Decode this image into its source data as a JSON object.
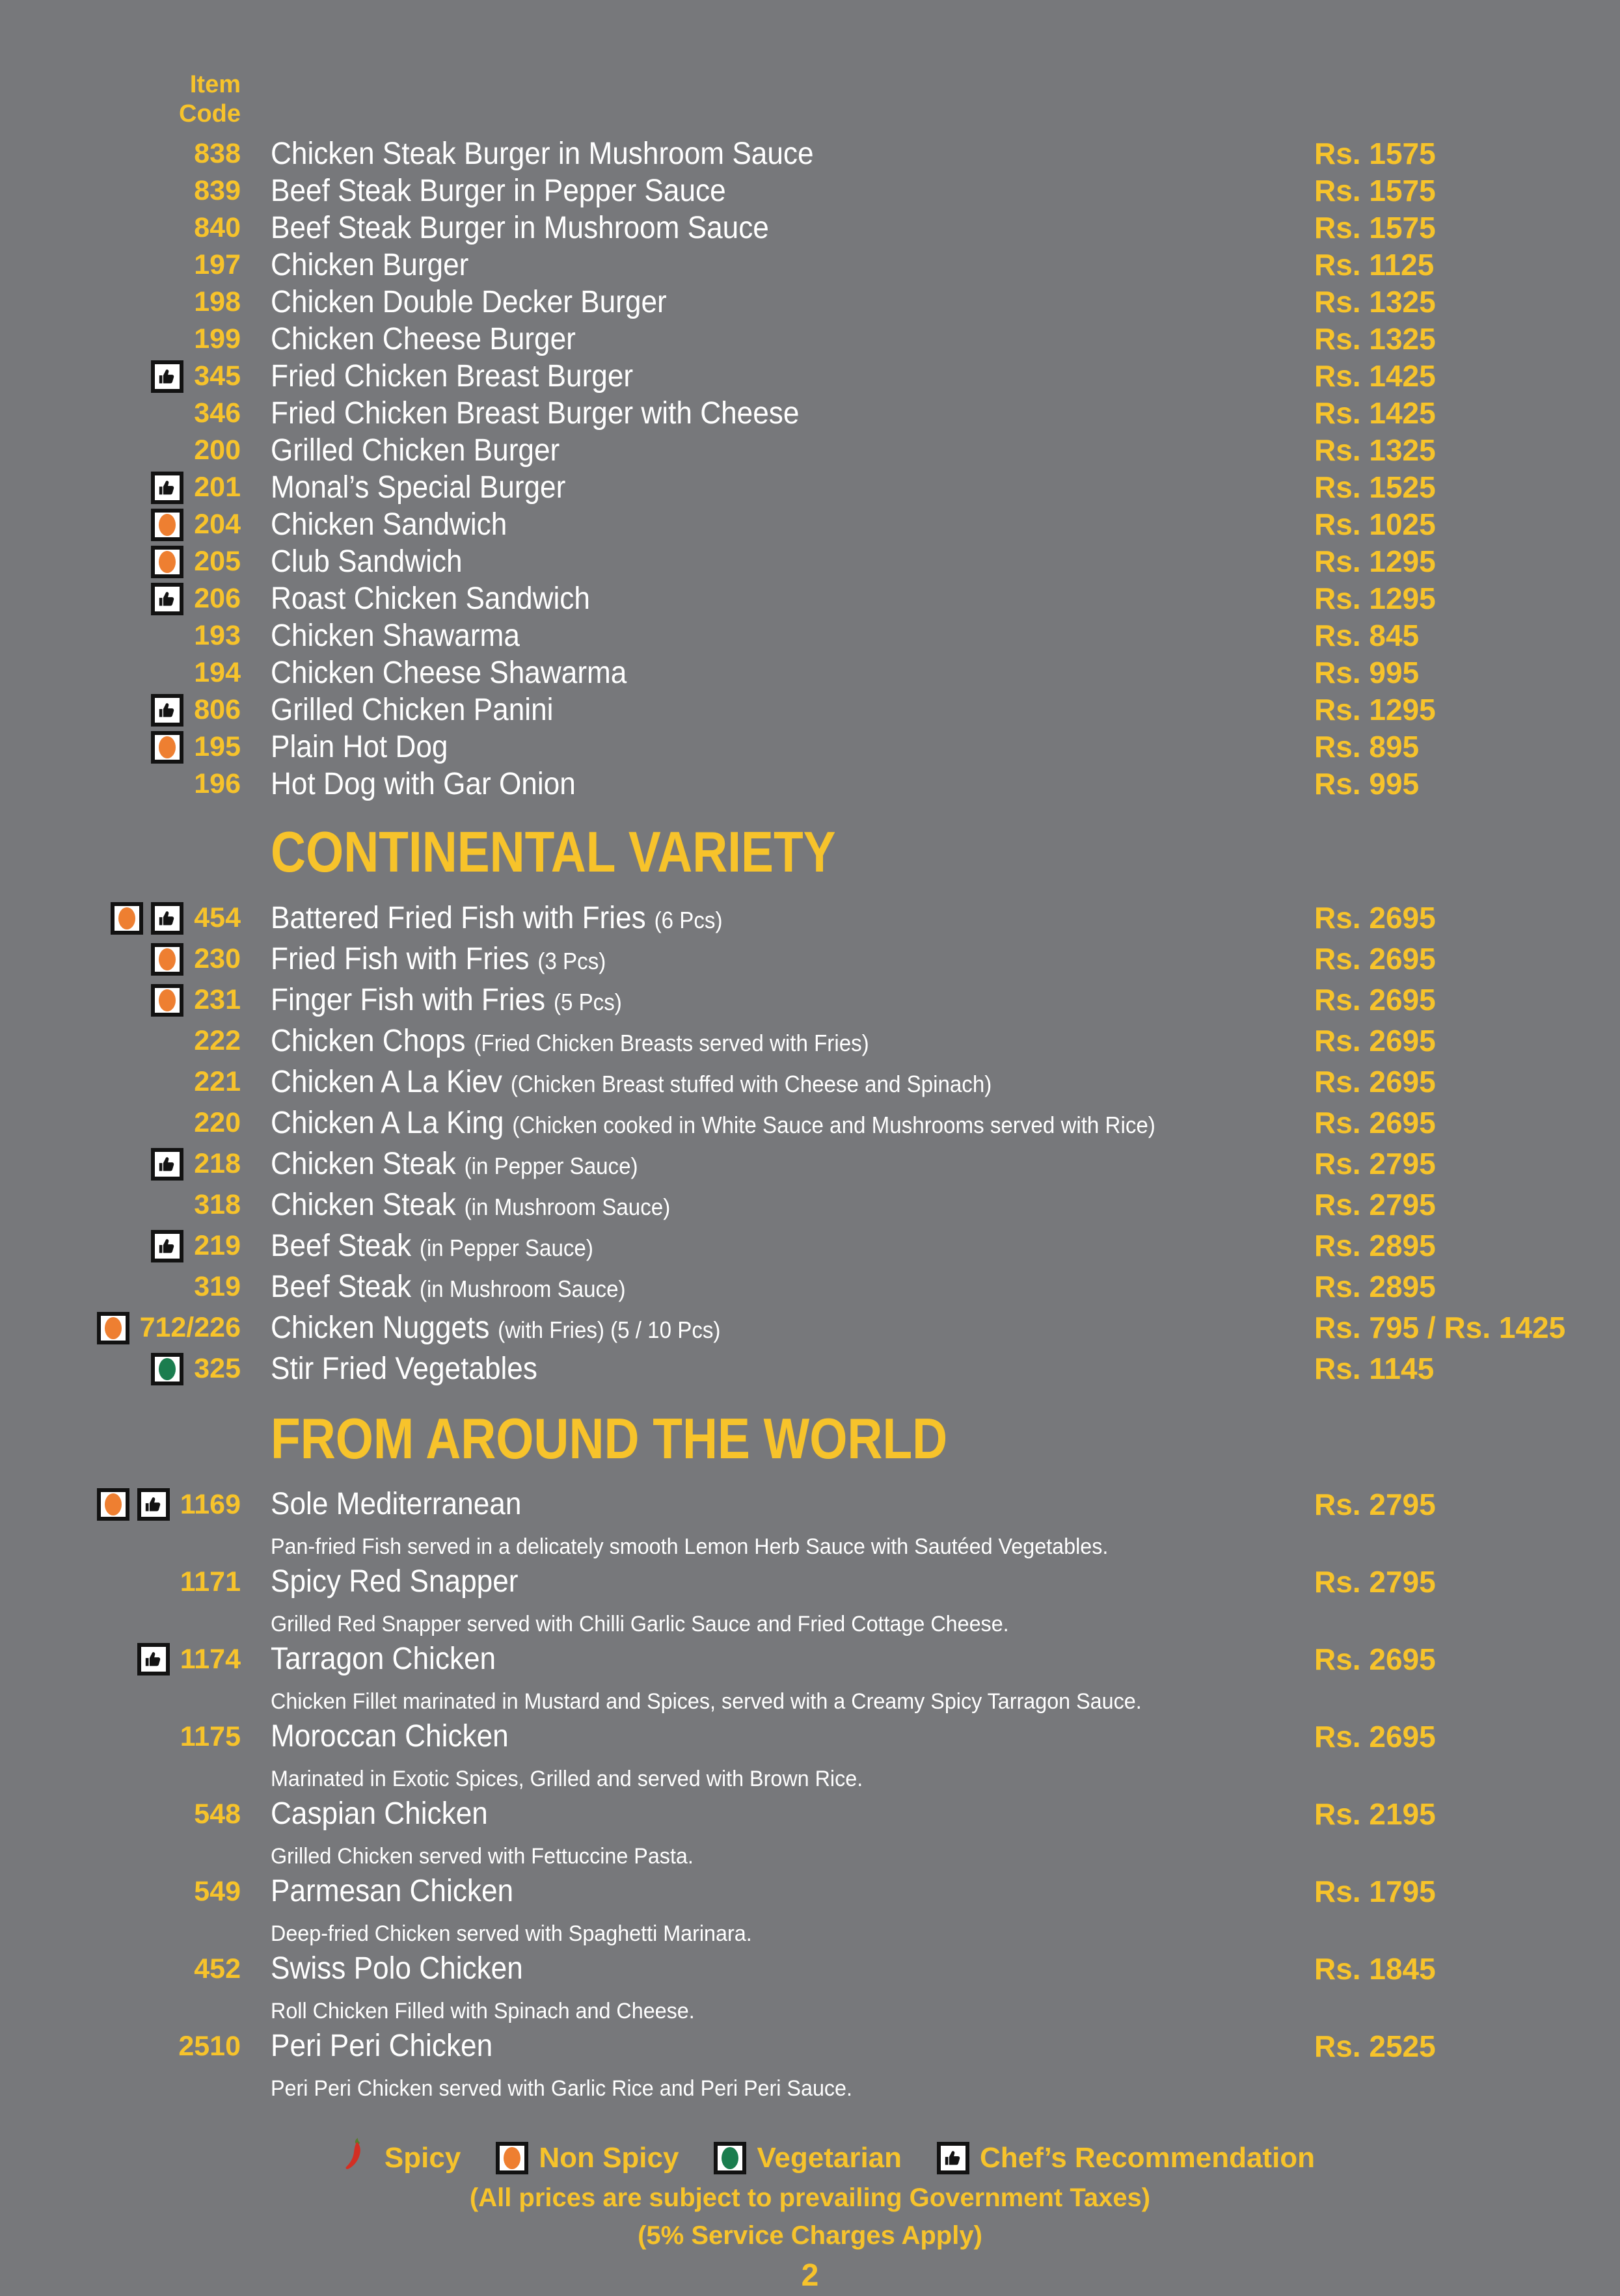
{
  "colors": {
    "background": "#77787b",
    "accent_yellow": "#f7c32b",
    "item_text": "#ffffff",
    "non_spicy_orange": "#ee7f31",
    "vegetarian_green": "#1b7d4f",
    "icon_black": "#121212",
    "spicy_red": "#d32f23"
  },
  "header": {
    "line1": "Item",
    "line2": "Code"
  },
  "menu": {
    "sections": [
      {
        "id": "burgers",
        "title": "",
        "items": [
          {
            "icons": [],
            "code": "838",
            "name": "Chicken Steak Burger in Mushroom Sauce",
            "price": "Rs. 1575"
          },
          {
            "icons": [],
            "code": "839",
            "name": "Beef Steak Burger in Pepper Sauce",
            "price": "Rs. 1575"
          },
          {
            "icons": [],
            "code": "840",
            "name": "Beef Steak Burger in Mushroom Sauce",
            "price": "Rs. 1575"
          },
          {
            "icons": [],
            "code": "197",
            "name": "Chicken Burger",
            "price": "Rs. 1125"
          },
          {
            "icons": [],
            "code": "198",
            "name": "Chicken Double Decker Burger",
            "price": "Rs. 1325"
          },
          {
            "icons": [],
            "code": "199",
            "name": "Chicken Cheese Burger",
            "price": "Rs. 1325"
          },
          {
            "icons": [
              "chef"
            ],
            "code": "345",
            "name": "Fried Chicken Breast Burger",
            "price": "Rs. 1425"
          },
          {
            "icons": [],
            "code": "346",
            "name": "Fried Chicken Breast Burger with Cheese",
            "price": "Rs. 1425"
          },
          {
            "icons": [],
            "code": "200",
            "name": "Grilled Chicken Burger",
            "price": "Rs. 1325"
          },
          {
            "icons": [
              "chef"
            ],
            "code": "201",
            "name": "Monal’s Special Burger",
            "price": "Rs. 1525"
          },
          {
            "icons": [
              "nonspicy"
            ],
            "code": "204",
            "name": "Chicken Sandwich",
            "price": "Rs. 1025"
          },
          {
            "icons": [
              "nonspicy"
            ],
            "code": "205",
            "name": "Club Sandwich",
            "price": "Rs. 1295"
          },
          {
            "icons": [
              "chef"
            ],
            "code": "206",
            "name": "Roast Chicken Sandwich",
            "price": "Rs. 1295"
          },
          {
            "icons": [],
            "code": "193",
            "name": "Chicken Shawarma",
            "price": "Rs. 845"
          },
          {
            "icons": [],
            "code": "194",
            "name": "Chicken Cheese Shawarma",
            "price": "Rs. 995"
          },
          {
            "icons": [
              "chef"
            ],
            "code": "806",
            "name": "Grilled Chicken Panini",
            "price": "Rs. 1295"
          },
          {
            "icons": [
              "nonspicy"
            ],
            "code": "195",
            "name": "Plain Hot Dog",
            "price": "Rs. 895"
          },
          {
            "icons": [],
            "code": "196",
            "name": "Hot Dog with Gar Onion",
            "price": "Rs. 995"
          }
        ]
      },
      {
        "id": "continental",
        "title": "CONTINENTAL VARIETY",
        "items": [
          {
            "icons": [
              "nonspicy",
              "chef"
            ],
            "code": "454",
            "name": "Battered Fried Fish with Fries",
            "note": "(6 Pcs)",
            "price": "Rs. 2695"
          },
          {
            "icons": [
              "nonspicy"
            ],
            "code": "230",
            "name": "Fried Fish with Fries",
            "note": "(3 Pcs)",
            "price": "Rs. 2695"
          },
          {
            "icons": [
              "nonspicy"
            ],
            "code": "231",
            "name": "Finger Fish with Fries",
            "note": "(5 Pcs)",
            "price": "Rs. 2695"
          },
          {
            "icons": [],
            "code": "222",
            "name": "Chicken Chops",
            "note": "(Fried Chicken Breasts served with Fries)",
            "price": "Rs. 2695"
          },
          {
            "icons": [],
            "code": "221",
            "name": "Chicken A La Kiev",
            "note": "(Chicken Breast stuffed with Cheese and Spinach)",
            "price": "Rs. 2695"
          },
          {
            "icons": [],
            "code": "220",
            "name": "Chicken A La King",
            "note": "(Chicken cooked in White Sauce and Mushrooms served with Rice)",
            "price": "Rs. 2695"
          },
          {
            "icons": [
              "chef"
            ],
            "code": "218",
            "name": "Chicken Steak",
            "note": "(in Pepper Sauce)",
            "price": "Rs. 2795"
          },
          {
            "icons": [],
            "code": "318",
            "name": "Chicken Steak",
            "note": "(in Mushroom Sauce)",
            "price": "Rs. 2795"
          },
          {
            "icons": [
              "chef"
            ],
            "code": "219",
            "name": "Beef Steak",
            "note": "(in Pepper Sauce)",
            "price": "Rs. 2895"
          },
          {
            "icons": [],
            "code": "319",
            "name": "Beef Steak",
            "note": "(in Mushroom Sauce)",
            "price": "Rs. 2895"
          },
          {
            "icons": [
              "nonspicy"
            ],
            "code": "712/226",
            "name": "Chicken Nuggets",
            "note": "(with Fries) (5 / 10 Pcs)",
            "price": "Rs. 795 / Rs. 1425"
          },
          {
            "icons": [
              "veg"
            ],
            "code": "325",
            "name": "Stir Fried Vegetables",
            "price": "Rs. 1145"
          }
        ]
      },
      {
        "id": "world",
        "title": "FROM AROUND THE WORLD",
        "items": [
          {
            "icons": [
              "nonspicy",
              "chef"
            ],
            "code": "1169",
            "name": "Sole Mediterranean",
            "desc": "Pan-fried Fish served in a delicately smooth Lemon Herb Sauce with Sautéed Vegetables.",
            "price": "Rs. 2795"
          },
          {
            "icons": [],
            "code": "1171",
            "name": "Spicy Red Snapper",
            "desc": "Grilled Red Snapper served with Chilli Garlic Sauce and Fried Cottage Cheese.",
            "price": "Rs. 2795"
          },
          {
            "icons": [
              "chef"
            ],
            "code": "1174",
            "name": "Tarragon Chicken",
            "desc": "Chicken Fillet marinated in Mustard and Spices, served with a Creamy Spicy Tarragon Sauce.",
            "price": "Rs. 2695"
          },
          {
            "icons": [],
            "code": "1175",
            "name": "Moroccan Chicken",
            "desc": "Marinated in Exotic Spices, Grilled and served with Brown Rice.",
            "price": "Rs. 2695"
          },
          {
            "icons": [],
            "code": "548",
            "name": "Caspian Chicken",
            "desc": "Grilled Chicken served with Fettuccine Pasta.",
            "price": "Rs. 2195"
          },
          {
            "icons": [],
            "code": "549",
            "name": "Parmesan Chicken",
            "desc": "Deep-fried Chicken served with Spaghetti Marinara.",
            "price": "Rs. 1795"
          },
          {
            "icons": [],
            "code": "452",
            "name": "Swiss Polo Chicken",
            "desc": "Roll Chicken Filled with Spinach and Cheese.",
            "price": "Rs. 1845"
          },
          {
            "icons": [],
            "code": "2510",
            "name": "Peri Peri Chicken",
            "desc": "Peri Peri Chicken served with Garlic Rice and Peri Peri Sauce.",
            "price": "Rs. 2525"
          }
        ]
      }
    ]
  },
  "legend": {
    "entries": [
      {
        "icon": "spicy",
        "label": "Spicy"
      },
      {
        "icon": "nonspicy",
        "label": "Non Spicy"
      },
      {
        "icon": "veg",
        "label": "Vegetarian"
      },
      {
        "icon": "chef",
        "label": "Chef’s Recommendation"
      }
    ],
    "note1": "(All prices are subject to prevailing Government Taxes)",
    "note2": "(5% Service Charges Apply)"
  },
  "page_number": "2"
}
